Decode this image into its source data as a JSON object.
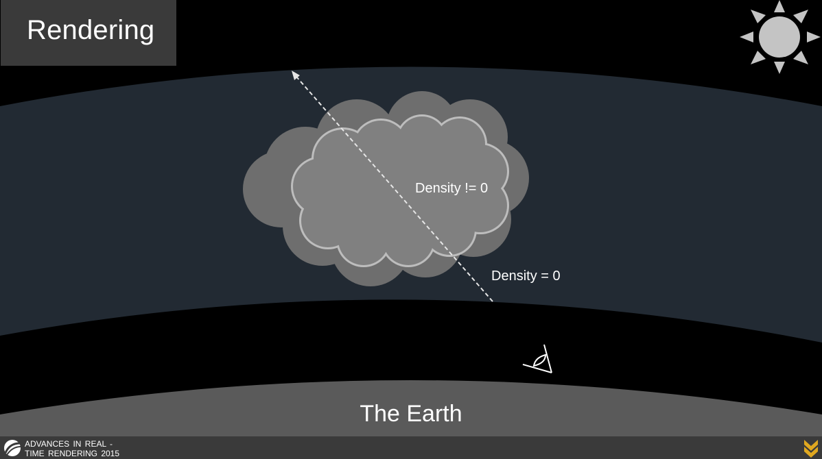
{
  "slide": {
    "title": "Rendering"
  },
  "labels": {
    "density_nonzero": "Density != 0",
    "density_zero": "Density = 0",
    "earth": "The Earth"
  },
  "footer": {
    "line1": "ADVANCES IN REAL -",
    "line2": "TIME RENDERING 2015"
  },
  "icons": {
    "sun": "sun-icon",
    "eye": "eye-icon",
    "conference_logo": "conference-logo-icon",
    "studio_logo": "studio-logo-icon"
  },
  "colors": {
    "background": "#000000",
    "atmosphere": "#222a33",
    "earth": "#5a5a5a",
    "cloud_outer": "#6e6e6e",
    "cloud_inner": "#808080",
    "cloud_inner_outline": "#bdbdbd",
    "sun": "#c4c4c4",
    "footer_bar": "#3a3a3a",
    "title_box": "#3a3a3a",
    "brand_mark": "#e0a820"
  }
}
